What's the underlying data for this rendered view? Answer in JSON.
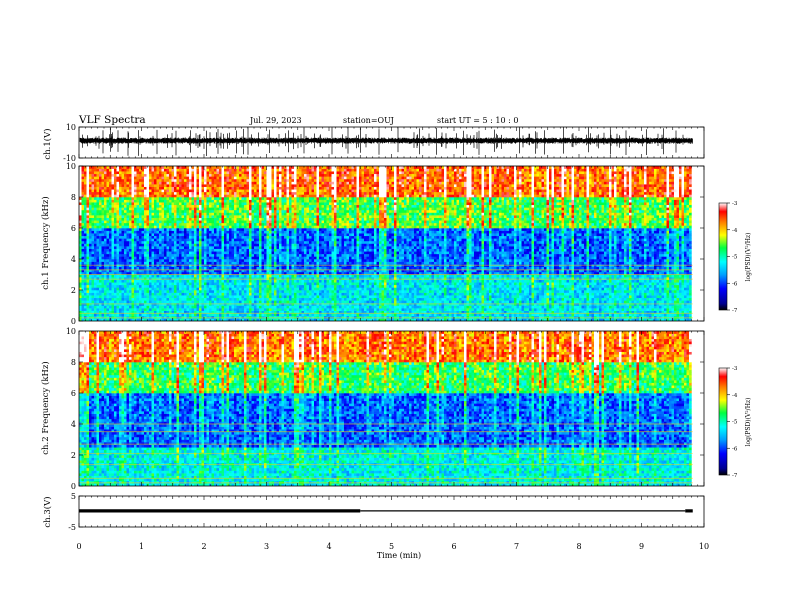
{
  "header": {
    "title": "VLF Spectra",
    "date": "Jul. 29, 2023",
    "station": "station=OUJ",
    "start": "start UT = 5 : 10 : 0"
  },
  "chart_data": [
    {
      "id": "waveform-ch1",
      "type": "line",
      "ylabel": "ch.1(V)",
      "ylim": [
        -10,
        10
      ],
      "yticks": [
        "10",
        "-10"
      ],
      "xlim": [
        0,
        10
      ],
      "baseline_v": 1.2,
      "noise_band_v": [
        -0.7,
        3.0
      ],
      "spike_times_min": [
        0.38,
        0.5,
        0.62,
        0.78,
        0.95,
        1.25,
        1.55,
        1.78,
        2.04,
        2.22,
        2.52,
        2.63,
        2.7,
        3.05,
        3.35,
        3.6,
        4.05,
        4.3,
        4.5,
        4.8,
        5.1,
        5.45,
        5.72,
        6.15,
        6.4,
        6.65,
        7.05,
        7.3,
        7.45,
        7.75,
        8.15,
        8.5,
        8.75,
        9.08,
        9.35,
        9.55
      ]
    },
    {
      "id": "spectrogram-ch1",
      "type": "heatmap",
      "ylabel": "ch.1 Frequency (kHz)",
      "ylim": [
        0,
        10
      ],
      "yticks": [
        "0",
        "2",
        "4",
        "6",
        "8",
        "10"
      ],
      "xlim": [
        0,
        10
      ],
      "color_range_log": [
        -7,
        -3
      ],
      "colorbar_ticks": [
        "-3",
        "-4",
        "-5",
        "-6",
        "-7"
      ],
      "colorbar_label": "log(PSD)(V²/Hz)",
      "description_levels": [
        {
          "freq_khz": [
            0,
            3
          ],
          "level": -5.4
        },
        {
          "freq_khz": [
            3,
            6
          ],
          "level": -6.0
        },
        {
          "freq_khz": [
            6,
            8
          ],
          "level": -4.8
        },
        {
          "freq_khz": [
            8,
            10
          ],
          "level": -3.8
        }
      ],
      "narrowband_lines_khz": [
        0.2,
        0.5,
        1.1,
        2.7,
        3.0,
        3.3,
        3.6
      ]
    },
    {
      "id": "spectrogram-ch2",
      "type": "heatmap",
      "ylabel": "ch.2 Frequency (kHz)",
      "ylim": [
        0,
        10
      ],
      "yticks": [
        "0",
        "2",
        "4",
        "6",
        "8",
        "10"
      ],
      "xlim": [
        0,
        10
      ],
      "color_range_log": [
        -7,
        -3
      ],
      "colorbar_ticks": [
        "-3",
        "-4",
        "-5",
        "-6",
        "-7"
      ],
      "colorbar_label": "log(PSD)(V²/Hz)",
      "description_levels": [
        {
          "freq_khz": [
            0,
            2.5
          ],
          "level": -5.3
        },
        {
          "freq_khz": [
            2.5,
            6
          ],
          "level": -6.0
        },
        {
          "freq_khz": [
            6,
            8
          ],
          "level": -4.9
        },
        {
          "freq_khz": [
            8,
            10
          ],
          "level": -3.9
        }
      ],
      "narrowband_lines_khz": [
        0.2,
        0.5,
        1.4,
        2.1,
        2.7,
        3.5,
        4.0
      ]
    },
    {
      "id": "waveform-ch3",
      "type": "line",
      "ylabel": "ch.3(V)",
      "ylim": [
        -5,
        5
      ],
      "yticks": [
        "5",
        "-5"
      ],
      "xlim": [
        0,
        10
      ],
      "xlabel": "Time (min)",
      "xticks": [
        "0",
        "1",
        "2",
        "3",
        "4",
        "5",
        "6",
        "7",
        "8",
        "9",
        "10"
      ],
      "segments": [
        {
          "t": [
            0,
            4.5
          ],
          "v": 0.2,
          "weight": "thick"
        },
        {
          "t": [
            4.5,
            9.7
          ],
          "v": 0.2,
          "weight": "thin"
        },
        {
          "t": [
            9.7,
            9.82
          ],
          "v": 0.2,
          "weight": "thick"
        }
      ]
    }
  ]
}
